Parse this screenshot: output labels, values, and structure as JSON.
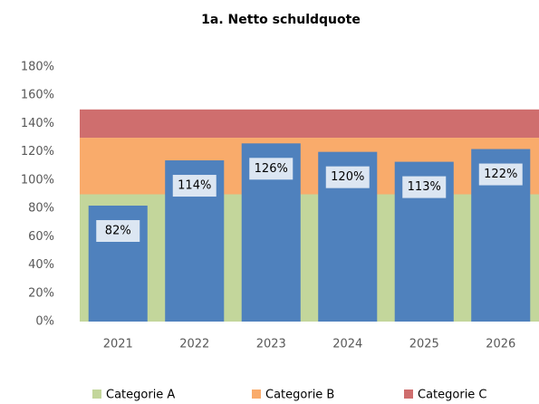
{
  "chart_data": {
    "type": "bar",
    "title": "1a. Netto schuldquote",
    "categories": [
      "2021",
      "2022",
      "2023",
      "2024",
      "2025",
      "2026"
    ],
    "values": [
      82,
      114,
      126,
      120,
      113,
      122
    ],
    "value_labels": [
      "82%",
      "114%",
      "126%",
      "120%",
      "113%",
      "122%"
    ],
    "color": "#4f81bd",
    "bands": [
      {
        "name": "Categorie A",
        "color": "#c3d69b",
        "value": 90
      },
      {
        "name": "Categorie B",
        "color": "#f9ab6b",
        "value": 40
      },
      {
        "name": "Categorie C",
        "color": "#cf6e6e",
        "value": 20
      }
    ],
    "ylim": [
      0,
      180
    ],
    "yticks": [
      {
        "value": 0,
        "label": "0%"
      },
      {
        "value": 20,
        "label": "20%"
      },
      {
        "value": 40,
        "label": "40%"
      },
      {
        "value": 60,
        "label": "60%"
      },
      {
        "value": 80,
        "label": "80%"
      },
      {
        "value": 100,
        "label": "100%"
      },
      {
        "value": 120,
        "label": "120%"
      },
      {
        "value": 140,
        "label": "140%"
      },
      {
        "value": 160,
        "label": "160%"
      },
      {
        "value": 180,
        "label": "180%"
      }
    ]
  }
}
